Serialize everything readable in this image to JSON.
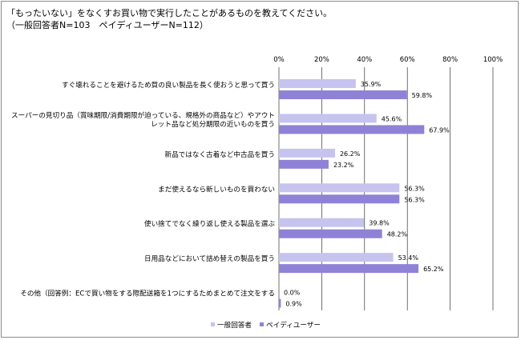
{
  "header": {
    "title": "「もったいない」をなくすお買い物で実行したことがあるものを教えてください。",
    "subtitle": "（一般回答者N=103　ペイディユーザーN=112）"
  },
  "colors": {
    "series_general": "#c6c3ef",
    "series_paidy": "#8f82d6",
    "gridline": "#333333"
  },
  "chart_data": {
    "type": "bar",
    "orientation": "horizontal",
    "title": "「もったいない」をなくすお買い物で実行したことがあるものを教えてください。",
    "subtitle": "（一般回答者N=103　ペイディユーザーN=112）",
    "xlim": [
      0,
      100
    ],
    "ticks": [
      "0%",
      "20%",
      "40%",
      "60%",
      "80%",
      "100%"
    ],
    "tick_values": [
      0,
      20,
      40,
      60,
      80,
      100
    ],
    "grid": true,
    "legend_position": "bottom",
    "categories": [
      [
        "すぐ壊れることを避けるため質の良い製品を長く使おうと思って買う"
      ],
      [
        "スーパーの見切り品（賞味期限/消費期限が迫っている、規格外の商品など）やアウト",
        "レット品など処分期限の近いものを買う"
      ],
      [
        "新品ではなく古着など中古品を買う"
      ],
      [
        "まだ使えるなら新しいものを買わない"
      ],
      [
        "使い捨てでなく繰り返し使える製品を選ぶ"
      ],
      [
        "日用品などにおいて詰め替えの製品を買う"
      ],
      [
        "その他（回答例：ECで買い物をする際配送箱を1つにするためまとめて注文をする"
      ]
    ],
    "series": [
      {
        "name": "一般回答者",
        "values": [
          35.9,
          45.6,
          26.2,
          56.3,
          39.8,
          53.4,
          0.0
        ],
        "labels": [
          "35.9%",
          "45.6%",
          "26.2%",
          "56.3%",
          "39.8%",
          "53.4%",
          "0.0%"
        ]
      },
      {
        "name": "ペイディユーザー",
        "values": [
          59.8,
          67.9,
          23.2,
          56.3,
          48.2,
          65.2,
          0.9
        ],
        "labels": [
          "59.8%",
          "67.9%",
          "23.2%",
          "56.3%",
          "48.2%",
          "65.2%",
          "0.9%"
        ]
      }
    ]
  }
}
